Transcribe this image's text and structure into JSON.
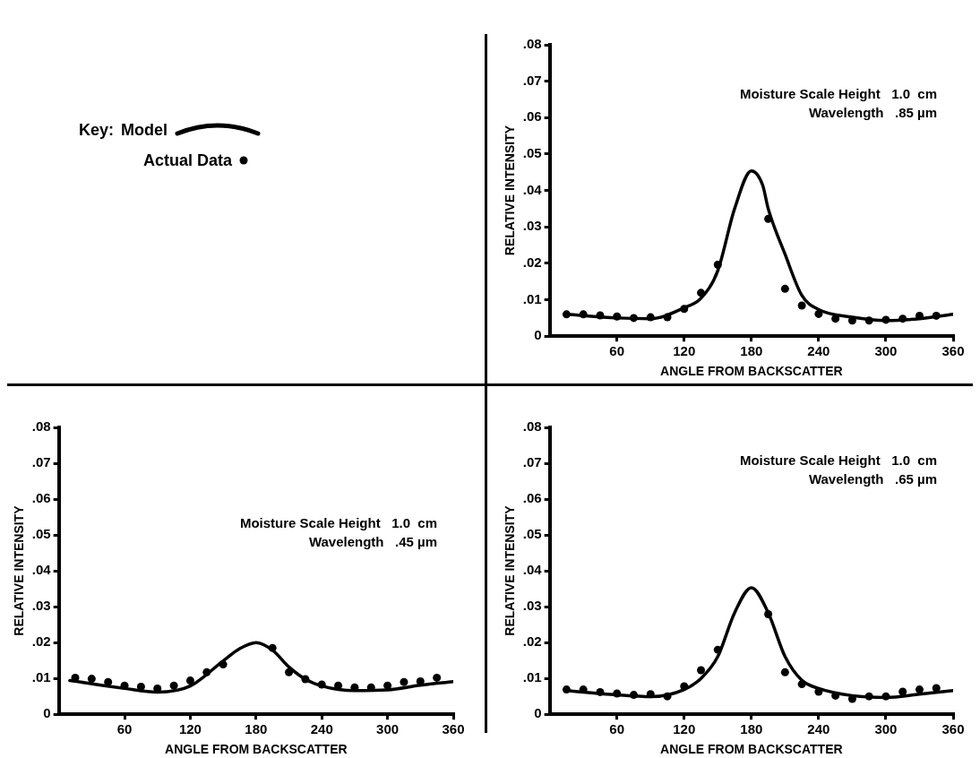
{
  "chart_data": [
    {
      "type": "line",
      "xlabel": "ANGLE FROM BACKSCATTER",
      "ylabel": "RELATIVE INTENSITY",
      "legend_title": "Key:",
      "legend": "left",
      "annotations": [
        "Moisture Scale Height   1.0  cm",
        "Wavelength   .85 µm"
      ],
      "xlim": [
        0,
        360
      ],
      "ylim": [
        0,
        0.08
      ],
      "xticks": [
        60,
        120,
        180,
        240,
        300,
        360
      ],
      "yticks": [
        {
          "value": 0,
          "label": "0"
        },
        {
          "value": 0.01,
          "label": ".01"
        },
        {
          "value": 0.02,
          "label": ".02"
        },
        {
          "value": 0.03,
          "label": ".03"
        },
        {
          "value": 0.04,
          "label": ".04"
        },
        {
          "value": 0.05,
          "label": ".05"
        },
        {
          "value": 0.06,
          "label": ".06"
        },
        {
          "value": 0.07,
          "label": ".07"
        },
        {
          "value": 0.08,
          "label": ".08"
        }
      ],
      "series": [
        {
          "name": "Model",
          "type": "line",
          "marker": "none",
          "color": "#000000",
          "x": [
            15,
            60,
            90,
            120,
            135,
            150,
            165,
            180,
            190,
            195,
            210,
            225,
            240,
            270,
            300,
            330,
            360
          ],
          "values": [
            0.006,
            0.005,
            0.0048,
            0.0078,
            0.0104,
            0.018,
            0.035,
            0.0454,
            0.0415,
            0.035,
            0.0225,
            0.0112,
            0.0073,
            0.0052,
            0.0043,
            0.0048,
            0.006
          ]
        },
        {
          "name": "Actual Data",
          "type": "scatter",
          "marker": "circle",
          "color": "#000000",
          "x": [
            15,
            30,
            45,
            60,
            75,
            90,
            105,
            120,
            135,
            150,
            195,
            210,
            225,
            240,
            255,
            270,
            285,
            300,
            315,
            330,
            345
          ],
          "values": [
            0.006,
            0.006,
            0.0057,
            0.0054,
            0.005,
            0.0052,
            0.0052,
            0.0075,
            0.0119,
            0.0196,
            0.0322,
            0.013,
            0.0084,
            0.0061,
            0.0048,
            0.0043,
            0.0043,
            0.0045,
            0.0048,
            0.0056,
            0.0056
          ]
        }
      ]
    },
    {
      "type": "line",
      "xlabel": "ANGLE FROM BACKSCATTER",
      "ylabel": "RELATIVE INTENSITY",
      "annotations": [
        "Moisture Scale Height   1.0  cm",
        "Wavelength   .45 µm"
      ],
      "xlim": [
        0,
        360
      ],
      "ylim": [
        0,
        0.08
      ],
      "xticks": [
        60,
        120,
        180,
        240,
        300,
        360
      ],
      "yticks": [
        {
          "value": 0,
          "label": "0"
        },
        {
          "value": 0.01,
          "label": ".01"
        },
        {
          "value": 0.02,
          "label": ".02"
        },
        {
          "value": 0.03,
          "label": ".03"
        },
        {
          "value": 0.04,
          "label": ".04"
        },
        {
          "value": 0.05,
          "label": ".05"
        },
        {
          "value": 0.06,
          "label": ".06"
        },
        {
          "value": 0.07,
          "label": ".07"
        },
        {
          "value": 0.08,
          "label": ".08"
        }
      ],
      "series": [
        {
          "type": "line",
          "marker": "none",
          "color": "#000000",
          "x": [
            10,
            60,
            90,
            120,
            150,
            165,
            180,
            195,
            210,
            225,
            240,
            270,
            300,
            330,
            360
          ],
          "values": [
            0.0094,
            0.0072,
            0.0062,
            0.0079,
            0.0149,
            0.0183,
            0.02,
            0.0179,
            0.0132,
            0.0098,
            0.0079,
            0.0066,
            0.0068,
            0.0081,
            0.0091
          ]
        },
        {
          "type": "scatter",
          "marker": "circle",
          "color": "#000000",
          "x": [
            15,
            30,
            45,
            60,
            75,
            90,
            105,
            120,
            135,
            150,
            195,
            210,
            225,
            240,
            255,
            270,
            285,
            300,
            315,
            330,
            345
          ],
          "values": [
            0.0102,
            0.0099,
            0.009,
            0.008,
            0.0077,
            0.0072,
            0.008,
            0.0094,
            0.0117,
            0.0139,
            0.0185,
            0.0117,
            0.0098,
            0.0083,
            0.008,
            0.0075,
            0.0075,
            0.008,
            0.009,
            0.0092,
            0.0102
          ]
        }
      ]
    },
    {
      "type": "line",
      "xlabel": "ANGLE FROM BACKSCATTER",
      "ylabel": "RELATIVE INTENSITY",
      "annotations": [
        "Moisture Scale Height   1.0  cm",
        "Wavelength   .65 µm"
      ],
      "xlim": [
        0,
        360
      ],
      "ylim": [
        0,
        0.08
      ],
      "xticks": [
        60,
        120,
        180,
        240,
        300,
        360
      ],
      "yticks": [
        {
          "value": 0,
          "label": "0"
        },
        {
          "value": 0.01,
          "label": ".01"
        },
        {
          "value": 0.02,
          "label": ".02"
        },
        {
          "value": 0.03,
          "label": ".03"
        },
        {
          "value": 0.04,
          "label": ".04"
        },
        {
          "value": 0.05,
          "label": ".05"
        },
        {
          "value": 0.06,
          "label": ".06"
        },
        {
          "value": 0.07,
          "label": ".07"
        },
        {
          "value": 0.08,
          "label": ".08"
        }
      ],
      "series": [
        {
          "type": "line",
          "marker": "none",
          "color": "#000000",
          "x": [
            15,
            60,
            90,
            120,
            135,
            150,
            165,
            180,
            195,
            210,
            225,
            240,
            270,
            300,
            330,
            360
          ],
          "values": [
            0.0066,
            0.0054,
            0.0049,
            0.0069,
            0.01,
            0.0161,
            0.0283,
            0.0353,
            0.0283,
            0.0161,
            0.0095,
            0.0072,
            0.0052,
            0.0047,
            0.0056,
            0.0066
          ]
        },
        {
          "type": "scatter",
          "marker": "circle",
          "color": "#000000",
          "x": [
            15,
            30,
            45,
            60,
            75,
            90,
            105,
            120,
            135,
            150,
            195,
            210,
            225,
            240,
            255,
            270,
            285,
            300,
            315,
            330,
            345
          ],
          "values": [
            0.0069,
            0.0069,
            0.0062,
            0.0058,
            0.0054,
            0.0056,
            0.005,
            0.0078,
            0.0123,
            0.018,
            0.0279,
            0.0117,
            0.0084,
            0.0063,
            0.0052,
            0.0043,
            0.005,
            0.005,
            0.0063,
            0.0069,
            0.0073
          ]
        }
      ]
    }
  ]
}
